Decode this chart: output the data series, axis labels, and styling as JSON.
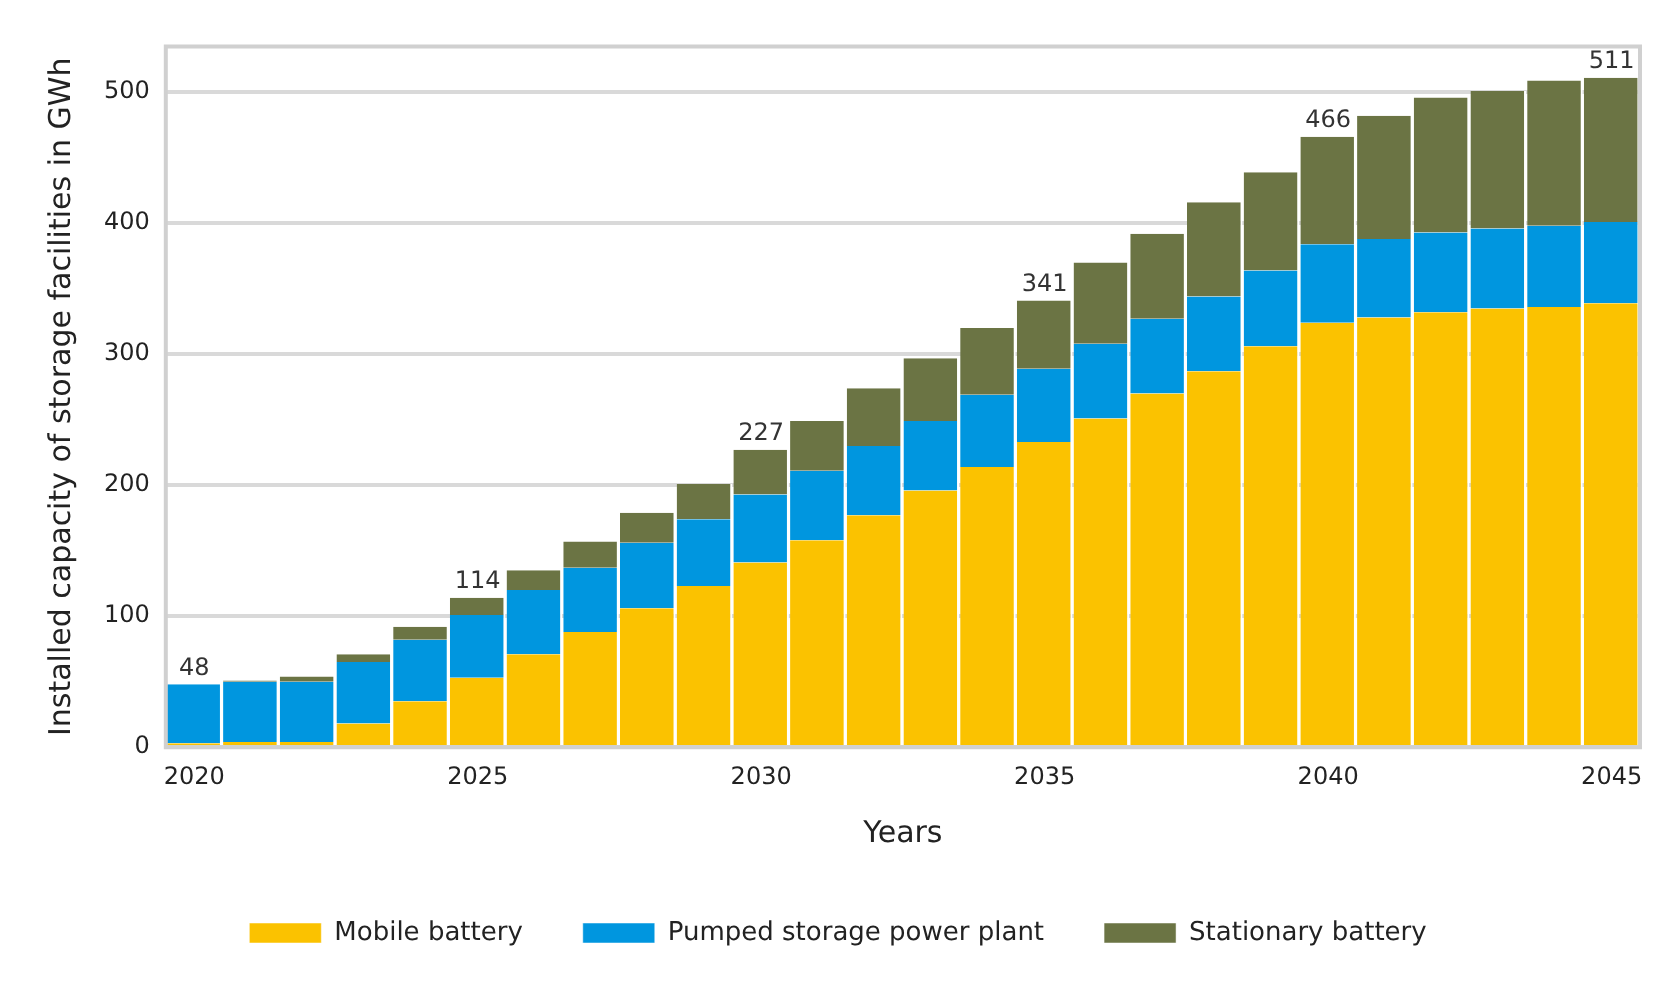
{
  "chart_data": {
    "type": "bar",
    "stacked": true,
    "xlabel": "Years",
    "ylabel": "Installed capacity of storage facilities in GWh",
    "categories": [
      "2020",
      null,
      null,
      null,
      null,
      "2025",
      null,
      null,
      null,
      null,
      "2030",
      null,
      null,
      null,
      null,
      "2035",
      null,
      null,
      null,
      null,
      "2040",
      null,
      null,
      null,
      null,
      "2045"
    ],
    "series": [
      {
        "name": "Mobile battery",
        "color": "#fbc200",
        "values": [
          3,
          4,
          4,
          18,
          35,
          53,
          71,
          88,
          106,
          123,
          141,
          158,
          177,
          196,
          214,
          233,
          251,
          270,
          287,
          306,
          324,
          328,
          332,
          335,
          336,
          339
        ]
      },
      {
        "name": "Pumped storage power plant",
        "color": "#0096df",
        "values": [
          45,
          46,
          46,
          47,
          47,
          48,
          49,
          49,
          50,
          51,
          52,
          53,
          53,
          53,
          55,
          56,
          57,
          57,
          57,
          58,
          60,
          60,
          61,
          61,
          62,
          62
        ]
      },
      {
        "name": "Stationary battery",
        "color": "#6b7444",
        "values": [
          0,
          1,
          4,
          6,
          10,
          13,
          15,
          20,
          23,
          27,
          34,
          38,
          44,
          48,
          51,
          52,
          62,
          65,
          72,
          75,
          82,
          94,
          103,
          105,
          111,
          110
        ]
      }
    ],
    "totals": [
      "48",
      null,
      null,
      null,
      null,
      "114",
      null,
      null,
      null,
      null,
      "227",
      null,
      null,
      null,
      null,
      "341",
      null,
      null,
      null,
      null,
      "466",
      null,
      null,
      null,
      null,
      "511"
    ],
    "ylim": [
      0,
      535
    ],
    "yticks": [
      0,
      100,
      200,
      300,
      400,
      500
    ],
    "grid": "y",
    "legend": "bottom"
  }
}
